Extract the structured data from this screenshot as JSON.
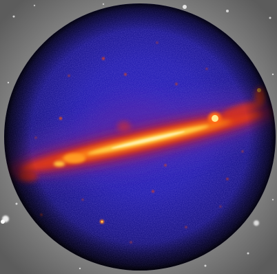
{
  "image": {
    "subject": "gamma-ray-sky-sphere",
    "colors": {
      "background_grey": "#8a8a8a",
      "sphere_dark": "#0a0628",
      "sphere_blue": "#2a22b8",
      "glow_red": "#d2281e",
      "glow_orange": "#ff7a12",
      "glow_yellow": "#ffe66a",
      "glow_white": "#fff6d8"
    }
  }
}
